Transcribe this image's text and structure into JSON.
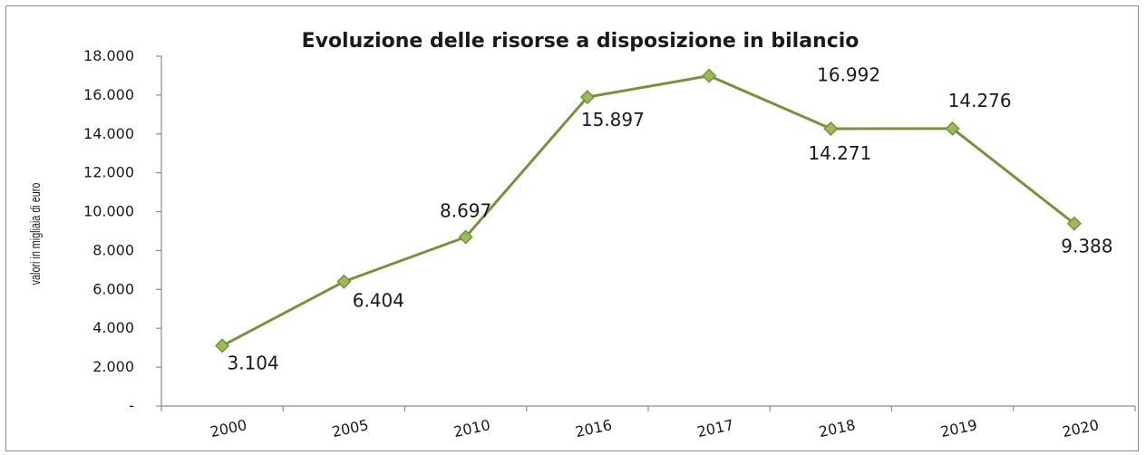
{
  "chart_data": {
    "type": "line",
    "title": "Evoluzione delle risorse a disposizione in bilancio",
    "ylabel": "valori in migliaia di euro",
    "xlabel": "",
    "categories": [
      "2000",
      "2005",
      "2010",
      "2016",
      "2017",
      "2018",
      "2019",
      "2020"
    ],
    "series": [
      {
        "values": [
          3104,
          6404,
          8697,
          15897,
          16992,
          14271,
          14276,
          9388
        ],
        "data_labels": [
          "3.104",
          "6.404",
          "8.697",
          "15.897",
          "16.992",
          "14.271",
          "14.276",
          "9.388"
        ],
        "color": "#76923c",
        "marker_color": "#9bbb59",
        "marker": "diamond"
      }
    ],
    "ylim": [
      0,
      18000
    ],
    "yticks": [
      0,
      2000,
      4000,
      6000,
      8000,
      10000,
      12000,
      14000,
      16000,
      18000
    ],
    "ytick_labels": [
      "-",
      "2.000",
      "4.000",
      "6.000",
      "8.000",
      "10.000",
      "12.000",
      "14.000",
      "16.000",
      "18.000"
    ],
    "grid": false,
    "legend": "none"
  }
}
